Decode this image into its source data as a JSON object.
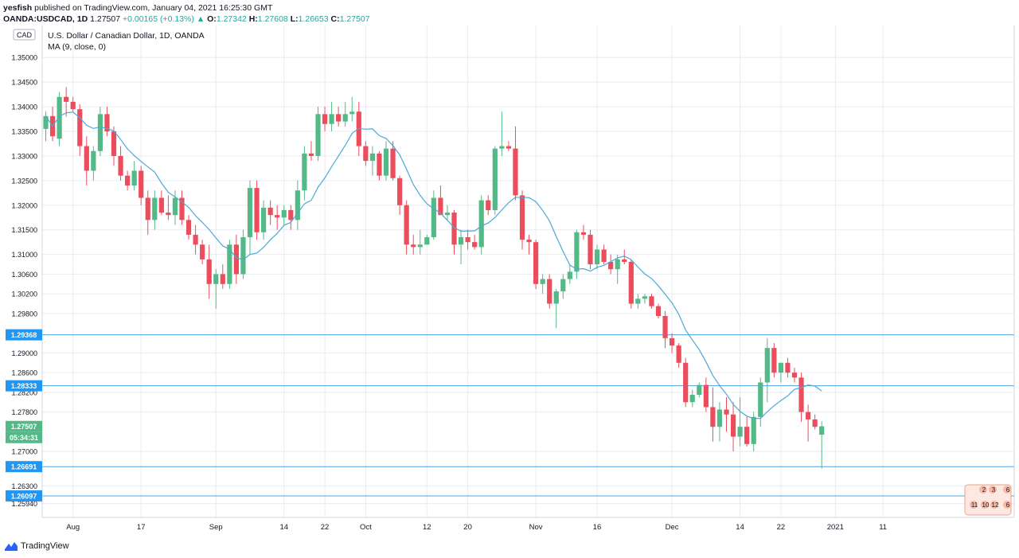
{
  "header": {
    "user": "yesfish",
    "published": "published on TradingView.com, January 04, 2021 16:25:30 GMT",
    "symbol": "OANDA:USDCAD, 1D",
    "last": "1.27507",
    "change": "+0.00165 (+0.13%)",
    "arrow": "▲",
    "o_label": "O:",
    "o_value": "1.27342",
    "h_label": "H:",
    "h_value": "1.27608",
    "l_label": "L:",
    "l_value": "1.26653",
    "c_label": "C:",
    "c_value": "1.27507"
  },
  "currency_badge": "CAD",
  "legend": {
    "title": "U.S. Dollar / Canadian Dollar, 1D, OANDA",
    "indicator": "MA (9, close, 0)"
  },
  "footer": {
    "brand": "TradingView"
  },
  "colors": {
    "up": "#26a69a",
    "up_candle": "#53b987",
    "down_candle": "#eb4d5c",
    "ma": "#4da8d6",
    "hline": "#4aa3df",
    "grid": "#e8ecf0",
    "price_tag": "#2196f3"
  },
  "chart_data": {
    "type": "candlestick",
    "title": "U.S. Dollar / Canadian Dollar, 1D, OANDA",
    "ylim": [
      1.2566,
      1.3565
    ],
    "y_ticks": [
      "1.35000",
      "1.34500",
      "1.34000",
      "1.33500",
      "1.33000",
      "1.32500",
      "1.32000",
      "1.31500",
      "1.31000",
      "1.30600",
      "1.30200",
      "1.29800",
      "1.29000",
      "1.28600",
      "1.28200",
      "1.27800",
      "1.27000",
      "1.26300",
      "1.25940"
    ],
    "x_ticks": [
      "Aug",
      "17",
      "Sep",
      "14",
      "22",
      "Oct",
      "12",
      "20",
      "Nov",
      "16",
      "Dec",
      "14",
      "22",
      "2021",
      "11"
    ],
    "x_tick_bar_index": [
      4,
      14,
      25,
      35,
      41,
      47,
      56,
      62,
      72,
      81,
      92,
      102,
      108,
      116,
      123
    ],
    "horizontal_lines": [
      1.29368,
      1.28333,
      1.26691,
      1.26097
    ],
    "price_labels": [
      {
        "value": "1.29368",
        "kind": "level"
      },
      {
        "value": "1.28333",
        "kind": "level"
      },
      {
        "value": "1.27507",
        "kind": "last"
      },
      {
        "value": "05:34:31",
        "kind": "countdown"
      },
      {
        "value": "1.26691",
        "kind": "level"
      },
      {
        "value": "1.26097",
        "kind": "level"
      }
    ],
    "event_badges": [
      "2",
      "3",
      "6",
      "11",
      "10",
      "12",
      "6"
    ],
    "ma_period": 9,
    "ohlc": [
      [
        1.3355,
        1.339,
        1.333,
        1.3381
      ],
      [
        1.3381,
        1.34,
        1.333,
        1.334
      ],
      [
        1.3335,
        1.343,
        1.332,
        1.342
      ],
      [
        1.342,
        1.344,
        1.338,
        1.341
      ],
      [
        1.341,
        1.342,
        1.339,
        1.3395
      ],
      [
        1.3395,
        1.3405,
        1.33,
        1.332
      ],
      [
        1.332,
        1.334,
        1.324,
        1.327
      ],
      [
        1.327,
        1.332,
        1.325,
        1.331
      ],
      [
        1.331,
        1.34,
        1.33,
        1.3385
      ],
      [
        1.3385,
        1.34,
        1.334,
        1.335
      ],
      [
        1.335,
        1.336,
        1.328,
        1.33
      ],
      [
        1.33,
        1.332,
        1.325,
        1.326
      ],
      [
        1.326,
        1.327,
        1.323,
        1.324
      ],
      [
        1.324,
        1.329,
        1.323,
        1.327
      ],
      [
        1.327,
        1.328,
        1.32,
        1.3215
      ],
      [
        1.3215,
        1.323,
        1.314,
        1.317
      ],
      [
        1.317,
        1.323,
        1.315,
        1.3215
      ],
      [
        1.3215,
        1.323,
        1.318,
        1.3185
      ],
      [
        1.3185,
        1.322,
        1.317,
        1.318
      ],
      [
        1.318,
        1.323,
        1.316,
        1.3215
      ],
      [
        1.3215,
        1.323,
        1.316,
        1.317
      ],
      [
        1.317,
        1.318,
        1.313,
        1.314
      ],
      [
        1.314,
        1.316,
        1.31,
        1.312
      ],
      [
        1.312,
        1.313,
        1.308,
        1.309
      ],
      [
        1.309,
        1.312,
        1.301,
        1.304
      ],
      [
        1.304,
        1.307,
        1.299,
        1.306
      ],
      [
        1.306,
        1.308,
        1.303,
        1.304
      ],
      [
        1.304,
        1.313,
        1.303,
        1.312
      ],
      [
        1.312,
        1.314,
        1.304,
        1.306
      ],
      [
        1.306,
        1.315,
        1.305,
        1.3135
      ],
      [
        1.3135,
        1.325,
        1.31,
        1.3235
      ],
      [
        1.3235,
        1.325,
        1.313,
        1.3145
      ],
      [
        1.3145,
        1.321,
        1.313,
        1.3195
      ],
      [
        1.3195,
        1.321,
        1.316,
        1.318
      ],
      [
        1.318,
        1.32,
        1.315,
        1.3175
      ],
      [
        1.3175,
        1.32,
        1.316,
        1.319
      ],
      [
        1.319,
        1.32,
        1.315,
        1.317
      ],
      [
        1.317,
        1.325,
        1.315,
        1.323
      ],
      [
        1.323,
        1.332,
        1.321,
        1.3305
      ],
      [
        1.3305,
        1.333,
        1.329,
        1.33
      ],
      [
        1.33,
        1.34,
        1.329,
        1.3385
      ],
      [
        1.3385,
        1.34,
        1.335,
        1.3365
      ],
      [
        1.3365,
        1.341,
        1.335,
        1.3385
      ],
      [
        1.3385,
        1.34,
        1.336,
        1.337
      ],
      [
        1.337,
        1.341,
        1.336,
        1.3385
      ],
      [
        1.3385,
        1.342,
        1.337,
        1.339
      ],
      [
        1.339,
        1.341,
        1.33,
        1.332
      ],
      [
        1.332,
        1.333,
        1.328,
        1.329
      ],
      [
        1.329,
        1.332,
        1.326,
        1.3305
      ],
      [
        1.3305,
        1.331,
        1.325,
        1.326
      ],
      [
        1.326,
        1.333,
        1.325,
        1.3315
      ],
      [
        1.3315,
        1.333,
        1.325,
        1.3255
      ],
      [
        1.3255,
        1.326,
        1.318,
        1.32
      ],
      [
        1.32,
        1.321,
        1.31,
        1.312
      ],
      [
        1.312,
        1.314,
        1.31,
        1.3115
      ],
      [
        1.3115,
        1.315,
        1.31,
        1.312
      ],
      [
        1.312,
        1.314,
        1.312,
        1.3135
      ],
      [
        1.3135,
        1.323,
        1.313,
        1.3215
      ],
      [
        1.3215,
        1.324,
        1.318,
        1.318
      ],
      [
        1.318,
        1.32,
        1.317,
        1.3185
      ],
      [
        1.3185,
        1.319,
        1.31,
        1.312
      ],
      [
        1.312,
        1.315,
        1.308,
        1.3135
      ],
      [
        1.3135,
        1.315,
        1.311,
        1.3125
      ],
      [
        1.3125,
        1.314,
        1.311,
        1.3115
      ],
      [
        1.3115,
        1.322,
        1.31,
        1.321
      ],
      [
        1.321,
        1.322,
        1.318,
        1.319
      ],
      [
        1.319,
        1.332,
        1.318,
        1.3315
      ],
      [
        1.3315,
        1.339,
        1.33,
        1.332
      ],
      [
        1.332,
        1.333,
        1.331,
        1.3315
      ],
      [
        1.3315,
        1.336,
        1.321,
        1.322
      ],
      [
        1.322,
        1.323,
        1.311,
        1.313
      ],
      [
        1.313,
        1.314,
        1.31,
        1.3125
      ],
      [
        1.3125,
        1.313,
        1.303,
        1.304
      ],
      [
        1.304,
        1.306,
        1.302,
        1.305
      ],
      [
        1.305,
        1.306,
        1.299,
        1.3
      ],
      [
        1.3,
        1.303,
        1.295,
        1.3025
      ],
      [
        1.3025,
        1.306,
        1.301,
        1.305
      ],
      [
        1.305,
        1.308,
        1.304,
        1.3065
      ],
      [
        1.3065,
        1.315,
        1.305,
        1.3145
      ],
      [
        1.3145,
        1.316,
        1.313,
        1.314
      ],
      [
        1.314,
        1.315,
        1.307,
        1.308
      ],
      [
        1.308,
        1.312,
        1.307,
        1.311
      ],
      [
        1.311,
        1.312,
        1.308,
        1.3085
      ],
      [
        1.3085,
        1.31,
        1.306,
        1.307
      ],
      [
        1.307,
        1.31,
        1.304,
        1.309
      ],
      [
        1.309,
        1.311,
        1.308,
        1.3085
      ],
      [
        1.3085,
        1.309,
        1.299,
        1.3
      ],
      [
        1.3,
        1.302,
        1.299,
        1.301
      ],
      [
        1.301,
        1.302,
        1.3,
        1.3015
      ],
      [
        1.3015,
        1.302,
        1.299,
        1.2995
      ],
      [
        1.2995,
        1.3,
        1.297,
        1.2975
      ],
      [
        1.2975,
        1.2985,
        1.291,
        1.293
      ],
      [
        1.293,
        1.294,
        1.29,
        1.2915
      ],
      [
        1.2915,
        1.292,
        1.287,
        1.288
      ],
      [
        1.288,
        1.289,
        1.279,
        1.28
      ],
      [
        1.28,
        1.2825,
        1.279,
        1.2815
      ],
      [
        1.2815,
        1.284,
        1.281,
        1.2835
      ],
      [
        1.2835,
        1.285,
        1.278,
        1.279
      ],
      [
        1.279,
        1.283,
        1.272,
        1.275
      ],
      [
        1.275,
        1.28,
        1.272,
        1.2785
      ],
      [
        1.2785,
        1.281,
        1.274,
        1.2775
      ],
      [
        1.2775,
        1.28,
        1.27,
        1.273
      ],
      [
        1.273,
        1.281,
        1.271,
        1.275
      ],
      [
        1.275,
        1.277,
        1.271,
        1.2715
      ],
      [
        1.2715,
        1.278,
        1.27,
        1.277
      ],
      [
        1.277,
        1.285,
        1.275,
        1.284
      ],
      [
        1.284,
        1.293,
        1.28,
        1.291
      ],
      [
        1.291,
        1.292,
        1.285,
        1.286
      ],
      [
        1.286,
        1.288,
        1.284,
        1.288
      ],
      [
        1.288,
        1.289,
        1.285,
        1.286
      ],
      [
        1.286,
        1.287,
        1.284,
        1.285
      ],
      [
        1.285,
        1.286,
        1.276,
        1.278
      ],
      [
        1.278,
        1.2795,
        1.272,
        1.2765
      ],
      [
        1.2765,
        1.2775,
        1.2745,
        1.275
      ],
      [
        1.2734,
        1.2761,
        1.2665,
        1.2751
      ]
    ]
  }
}
